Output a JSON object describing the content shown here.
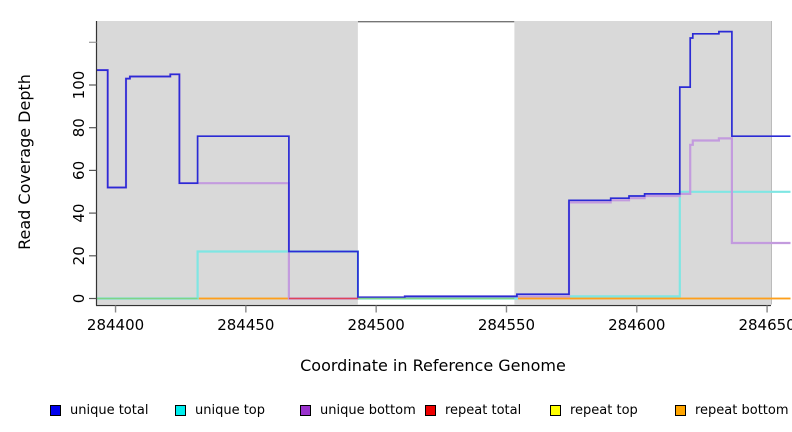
{
  "chart_data": {
    "type": "line",
    "subtype": "step",
    "title": "",
    "xlabel": "Coordinate in Reference Genome",
    "ylabel": "Read Coverage Depth",
    "xlim": [
      284392.5,
      284659
    ],
    "ylim": [
      -3,
      131
    ],
    "x_ticks": [
      284400,
      284450,
      284500,
      284550,
      284600,
      284650
    ],
    "x_tick_labels": [
      "284400",
      "284450",
      "284500",
      "284550",
      "284600",
      "284650"
    ],
    "y_ticks": [
      0,
      20,
      40,
      60,
      80,
      100,
      120
    ],
    "y_tick_labels": [
      "0",
      "20",
      "40",
      "60",
      "80",
      "100",
      ""
    ],
    "grid": false,
    "legend_position": "bottom",
    "panel_color": "#d9d9d9",
    "background_panels": [
      {
        "x0": 284392.5,
        "x1": 284493,
        "color": "#d9d9d9"
      },
      {
        "x0": 284553,
        "x1": 284651.5,
        "color": "#d9d9d9"
      }
    ],
    "gap_region": {
      "x0": 284493,
      "x1": 284553,
      "color": "#ffffff",
      "top_border_color": "#757575"
    },
    "series": [
      {
        "name": "repeat total",
        "color": "#e02828",
        "points": [
          [
            284392.7,
            0
          ],
          [
            284659,
            0
          ]
        ]
      },
      {
        "name": "repeat top",
        "color": "#efef3a",
        "points": [
          [
            284392.7,
            0
          ],
          [
            284659,
            0
          ]
        ]
      },
      {
        "name": "repeat bottom",
        "color": "#ff9e1b",
        "points": [
          [
            284392.7,
            0
          ],
          [
            284659,
            0
          ]
        ]
      },
      {
        "name": "unique top",
        "color": "#7fe6e3",
        "points": [
          [
            284392.7,
            0
          ],
          [
            284431.5,
            22
          ],
          [
            284493,
            0
          ],
          [
            284554,
            1
          ],
          [
            284616.5,
            50
          ],
          [
            284659,
            50
          ]
        ]
      },
      {
        "name": "unique bottom",
        "color": "#c39bde",
        "points": [
          [
            284392.7,
            107
          ],
          [
            284397,
            52
          ],
          [
            284404,
            103
          ],
          [
            284405.5,
            104
          ],
          [
            284421,
            105
          ],
          [
            284424.5,
            54
          ],
          [
            284466.5,
            0
          ],
          [
            284493,
            0.5
          ],
          [
            284511,
            1
          ],
          [
            284554,
            1
          ],
          [
            284574,
            45
          ],
          [
            284590,
            46
          ],
          [
            284597,
            47
          ],
          [
            284603,
            48
          ],
          [
            284616.5,
            49
          ],
          [
            284620.5,
            72
          ],
          [
            284621.5,
            74
          ],
          [
            284631.5,
            75
          ],
          [
            284636.5,
            26
          ],
          [
            284659,
            26
          ]
        ]
      },
      {
        "name": "unique total",
        "color": "#2b2bd5",
        "points": [
          [
            284392.7,
            107
          ],
          [
            284397,
            52
          ],
          [
            284404,
            103
          ],
          [
            284405.5,
            104
          ],
          [
            284421,
            105
          ],
          [
            284424.5,
            54
          ],
          [
            284431.5,
            76
          ],
          [
            284466.5,
            22
          ],
          [
            284493,
            0.5
          ],
          [
            284511,
            1
          ],
          [
            284554,
            2
          ],
          [
            284574,
            46
          ],
          [
            284590,
            47
          ],
          [
            284597,
            48
          ],
          [
            284603,
            49
          ],
          [
            284616.5,
            99
          ],
          [
            284620.5,
            122
          ],
          [
            284621.5,
            124
          ],
          [
            284631.5,
            125
          ],
          [
            284636.5,
            76
          ],
          [
            284659,
            76
          ]
        ]
      }
    ],
    "baseline_overlays": [
      {
        "x0": 284392.7,
        "x1": 284431.5,
        "y": 0,
        "color": "#7fd486"
      },
      {
        "x0": 284466.5,
        "x1": 284493,
        "y": 0,
        "color": "#e04458"
      },
      {
        "x0": 284493,
        "x1": 284553,
        "y": 0,
        "color": "#7fd486"
      }
    ],
    "legend": [
      {
        "label": "unique total",
        "color": "#0000ee"
      },
      {
        "label": "unique top",
        "color": "#00eeee"
      },
      {
        "label": "unique bottom",
        "color": "#9a32cd"
      },
      {
        "label": "repeat total",
        "color": "#ee0000"
      },
      {
        "label": "repeat top",
        "color": "#ffff00"
      },
      {
        "label": "repeat bottom",
        "color": "#ffa500"
      }
    ]
  }
}
